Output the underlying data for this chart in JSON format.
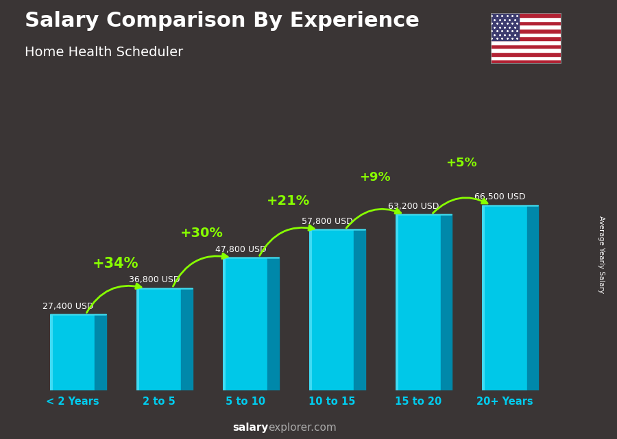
{
  "title": "Salary Comparison By Experience",
  "subtitle": "Home Health Scheduler",
  "categories": [
    "< 2 Years",
    "2 to 5",
    "5 to 10",
    "10 to 15",
    "15 to 20",
    "20+ Years"
  ],
  "values": [
    27400,
    36800,
    47800,
    57800,
    63200,
    66500
  ],
  "labels": [
    "27,400 USD",
    "36,800 USD",
    "47,800 USD",
    "57,800 USD",
    "63,200 USD",
    "66,500 USD"
  ],
  "pct_changes": [
    "+34%",
    "+30%",
    "+21%",
    "+9%",
    "+5%"
  ],
  "bar_front": "#00c8e8",
  "bar_side": "#0088aa",
  "bar_top": "#40ddf0",
  "bar_highlight": "#80eeff",
  "bg_color": "#3a3535",
  "title_color": "#ffffff",
  "subtitle_color": "#ffffff",
  "label_color": "#ffffff",
  "pct_color": "#88ff00",
  "cat_color": "#00ccee",
  "ylabel_text": "Average Yearly Salary",
  "footer_bold": "salary",
  "footer_normal": "explorer.com",
  "ylim_max": 85000
}
